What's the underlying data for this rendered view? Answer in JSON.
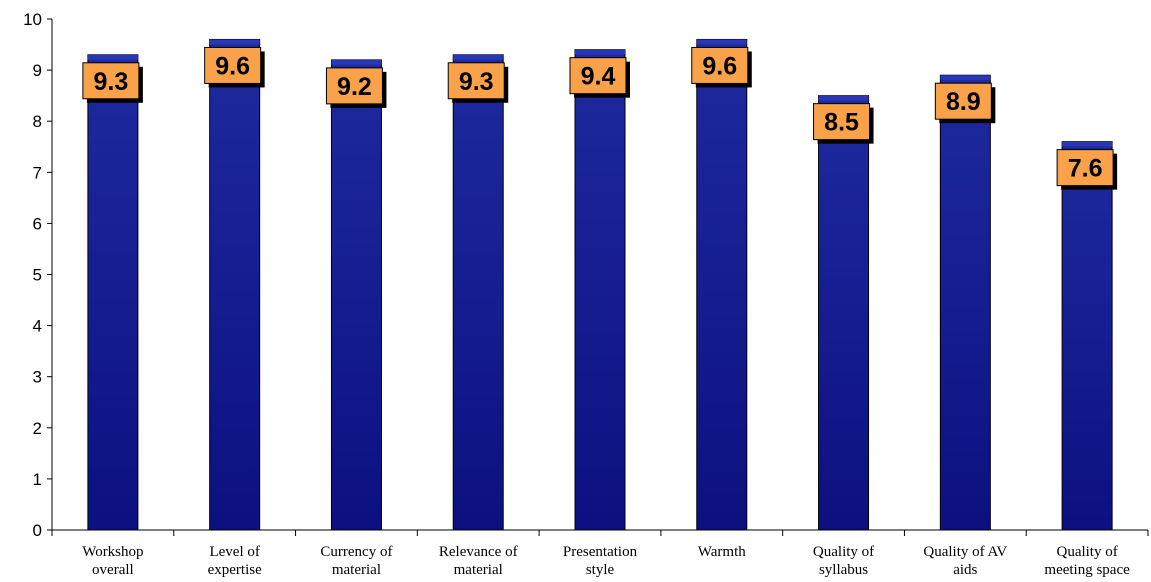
{
  "chart_data": {
    "type": "bar",
    "categories": [
      [
        "Workshop",
        "overall"
      ],
      [
        "Level of",
        "expertise"
      ],
      [
        "Currency of",
        "material"
      ],
      [
        "Relevance of",
        "material"
      ],
      [
        "Presentation",
        "style"
      ],
      [
        "Warmth"
      ],
      [
        "Quality of",
        "syllabus"
      ],
      [
        "Quality of AV",
        "aids"
      ],
      [
        "Quality of",
        "meeting space"
      ]
    ],
    "values": [
      9.3,
      9.6,
      9.2,
      9.3,
      9.4,
      9.6,
      8.5,
      8.9,
      7.6
    ],
    "data_labels": [
      "9.3",
      "9.6",
      "9.2",
      "9.3",
      "9.4",
      "9.6",
      "8.5",
      "8.9",
      "7.6"
    ],
    "y_ticks": [
      "0",
      "1",
      "2",
      "3",
      "4",
      "5",
      "6",
      "7",
      "8",
      "9",
      "10"
    ],
    "ylim": [
      0,
      10
    ],
    "title": "",
    "xlabel": "",
    "ylabel": "",
    "grid": false,
    "legend": "none",
    "colors": {
      "bar_top": "#1e2aa0",
      "bar_bottom": "#0c1080",
      "bar_edge": "#000000",
      "label_fill": "#f9a24a",
      "label_shadow": "#000000"
    }
  }
}
